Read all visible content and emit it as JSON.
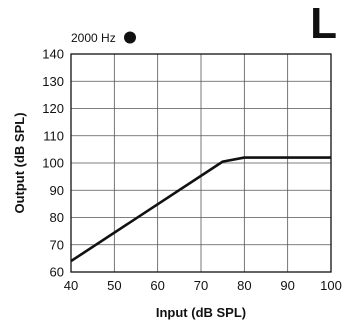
{
  "chart_data": {
    "type": "line",
    "title": "",
    "xlabel": "Input (dB SPL)",
    "ylabel": "Output (dB SPL)",
    "xlim": [
      40,
      100
    ],
    "ylim": [
      60,
      140
    ],
    "xticks": [
      40,
      50,
      60,
      70,
      80,
      90,
      100
    ],
    "yticks": [
      60,
      70,
      80,
      90,
      100,
      110,
      120,
      130,
      140
    ],
    "grid": true,
    "legend": {
      "placement": "top-left",
      "entries": [
        {
          "label": "2000 Hz",
          "marker": "filled-circle",
          "color": "#111111"
        }
      ]
    },
    "series": [
      {
        "name": "2000 Hz",
        "color": "#111111",
        "points": [
          {
            "x": 40,
            "y": 64
          },
          {
            "x": 75,
            "y": 100.5
          },
          {
            "x": 80,
            "y": 102
          },
          {
            "x": 100,
            "y": 102
          }
        ]
      }
    ],
    "annotation": "L"
  }
}
